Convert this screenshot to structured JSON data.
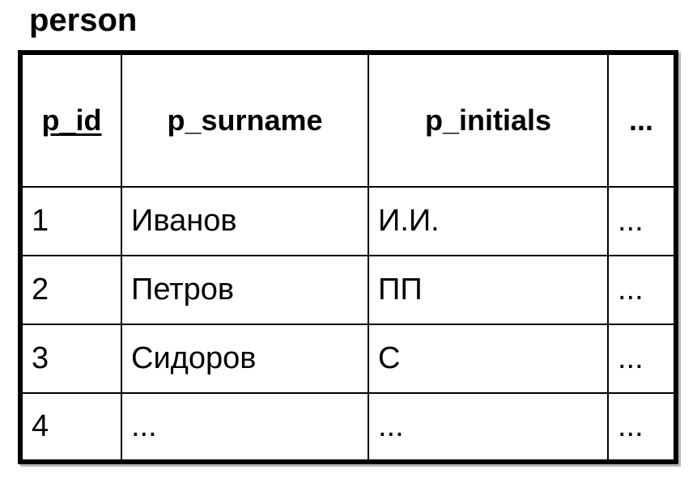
{
  "title": "person",
  "table": {
    "columns": [
      {
        "label": "p_id",
        "primary_key": true
      },
      {
        "label": "p_surname",
        "primary_key": false
      },
      {
        "label": "p_initials",
        "primary_key": false
      },
      {
        "label": "...",
        "primary_key": false
      }
    ],
    "rows": [
      [
        "1",
        "Иванов",
        "И.И.",
        "..."
      ],
      [
        "2",
        "Петров",
        "ПП",
        "..."
      ],
      [
        "3",
        "Сидоров",
        "С",
        "..."
      ],
      [
        "4",
        "...",
        "...",
        "..."
      ]
    ]
  },
  "colors": {
    "text": "#000000",
    "border": "#000000",
    "background": "#ffffff"
  }
}
